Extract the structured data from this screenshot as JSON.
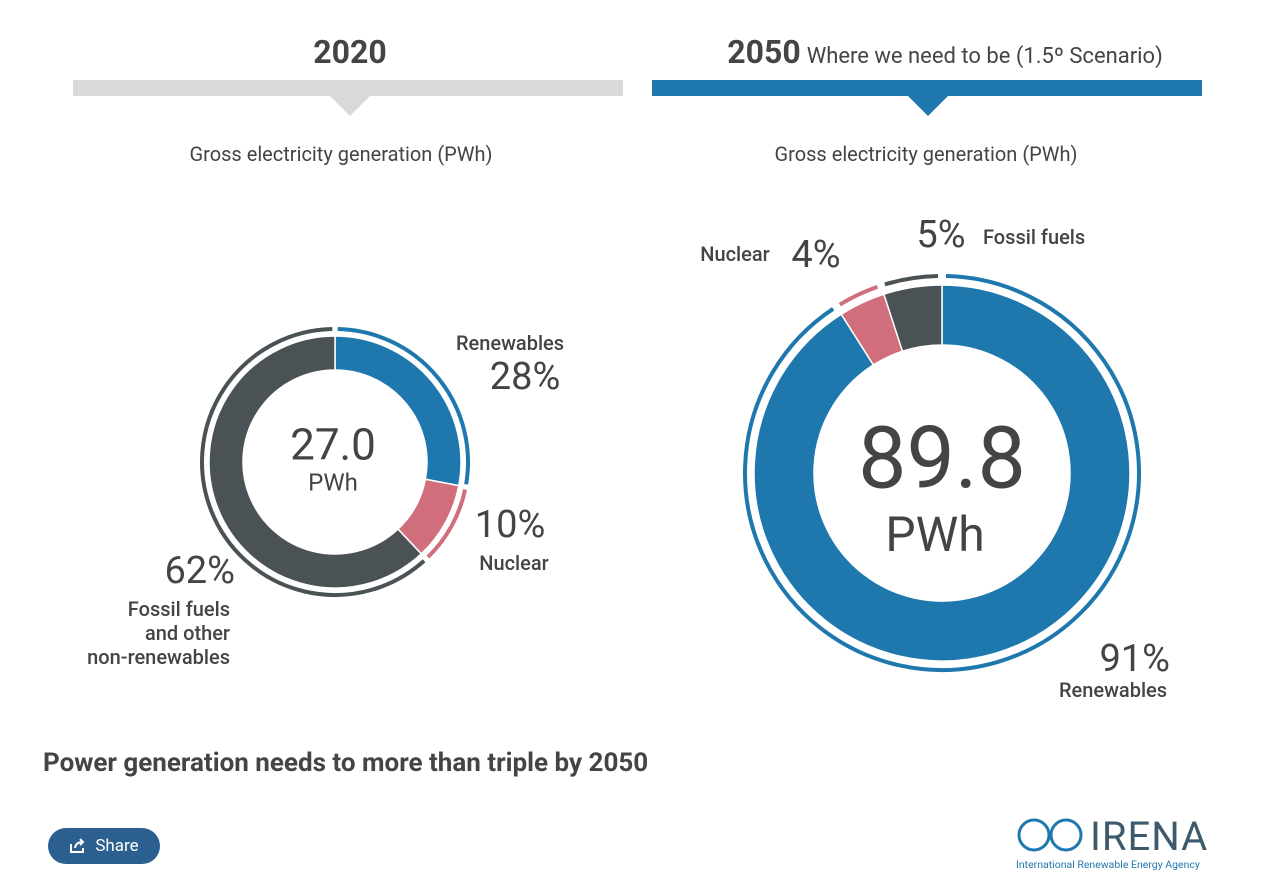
{
  "chart_data": [
    {
      "type": "donut",
      "title": "2020",
      "header_color": "#d9d9d9",
      "subtitle": "Gross electricity generation (PWh)",
      "total": {
        "value": 27,
        "label": "27.0"
      },
      "total_unit": "PWh",
      "categories": [
        "Renewables",
        "Nuclear",
        "Fossil fuels\nand other\nnon-renewables"
      ],
      "values": [
        28,
        10,
        62
      ],
      "value_labels": [
        "28%",
        "10%",
        "62%"
      ],
      "colors": [
        "#1f78ad",
        "#d06e7b",
        "#4a5255"
      ]
    },
    {
      "type": "donut",
      "title": "2050",
      "title_note": "Where we need to be (1.5º Scenario)",
      "header_color": "#1f78ad",
      "subtitle": "Gross electricity generation (PWh)",
      "total": {
        "value": 89.8,
        "label": "89.8"
      },
      "total_unit": "PWh",
      "categories": [
        "Renewables",
        "Nuclear",
        "Fossil fuels"
      ],
      "values": [
        91,
        4,
        5
      ],
      "value_labels": [
        "91%",
        "4%",
        "5%"
      ],
      "colors": [
        "#1f78ad",
        "#d06e7b",
        "#4a5255"
      ]
    }
  ],
  "headline": "Power generation needs to more than triple by 2050",
  "share": "Share",
  "logo": {
    "name": "IRENA",
    "tagline": "International Renewable Energy Agency"
  }
}
